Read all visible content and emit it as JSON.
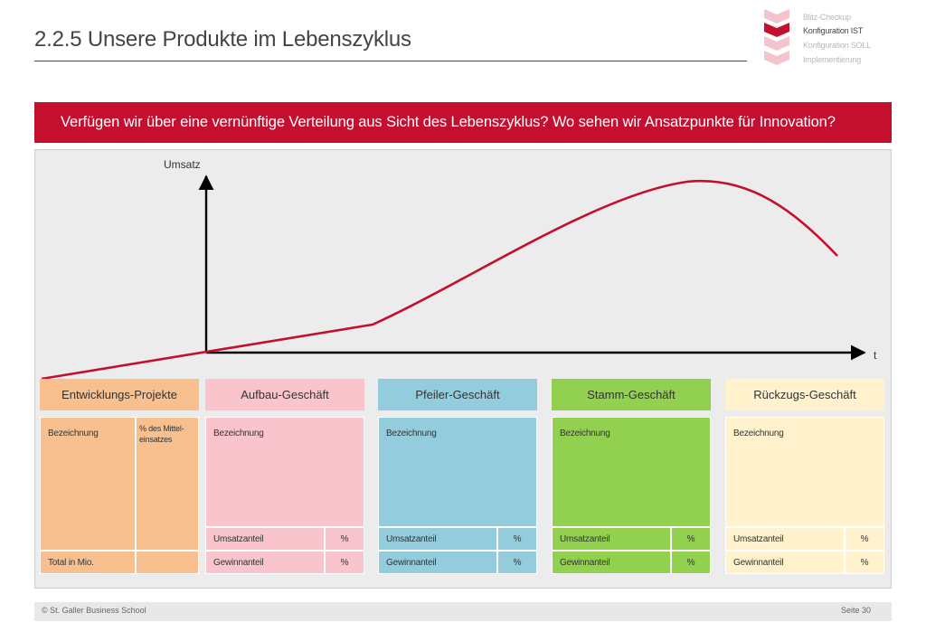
{
  "page": {
    "title": "2.2.5 Unsere Produkte im Lebenszyklus",
    "question": "Verfügen wir über eine vernünftige Verteilung aus Sicht des Lebenszyklus? Wo sehen wir Ansatzpunkte für Innovation?"
  },
  "progress": {
    "steps": [
      {
        "label": "Blitz-Checkup",
        "state": "done"
      },
      {
        "label": "Konfiguration IST",
        "state": "active"
      },
      {
        "label": "Konfiguration SOLL",
        "state": "todo"
      },
      {
        "label": "Implementierung",
        "state": "todo"
      }
    ],
    "colors": {
      "active": "#c4102e",
      "inactive": "#f4c4cd"
    }
  },
  "diagram": {
    "y_axis_label": "Umsatz",
    "x_axis_label": "t",
    "curve_color": "#c4102e",
    "axis_color": "#000000"
  },
  "phases": [
    {
      "name": "Entwicklungs-Projekte",
      "color": "#f9c08f",
      "header": "Bezeichnung",
      "extra_header": "% des Mittel-einsatzes",
      "footer_label": "Total in Mio."
    },
    {
      "name": "Aufbau-Geschäft",
      "color": "#f9c4cc",
      "header": "Bezeichnung",
      "rows": [
        {
          "label": "Umsatzanteil",
          "unit": "%"
        },
        {
          "label": "Gewinnanteil",
          "unit": "%"
        }
      ]
    },
    {
      "name": "Pfeiler-Geschäft",
      "color": "#93cddd",
      "header": "Bezeichnung",
      "rows": [
        {
          "label": "Umsatzanteil",
          "unit": "%"
        },
        {
          "label": "Gewinnanteil",
          "unit": "%"
        }
      ]
    },
    {
      "name": "Stamm-Geschäft",
      "color": "#92d050",
      "header": "Bezeichnung",
      "rows": [
        {
          "label": "Umsatzanteil",
          "unit": "%"
        },
        {
          "label": "Gewinnanteil",
          "unit": "%"
        }
      ]
    },
    {
      "name": "Rückzugs-Geschäft",
      "color": "#fff2cc",
      "header": "Bezeichnung",
      "rows": [
        {
          "label": "Umsatzanteil",
          "unit": "%"
        },
        {
          "label": "Gewinnanteil",
          "unit": "%"
        }
      ]
    }
  ],
  "footer": {
    "copyright": "© St. Galler Business School",
    "page_number": "Seite 30"
  }
}
